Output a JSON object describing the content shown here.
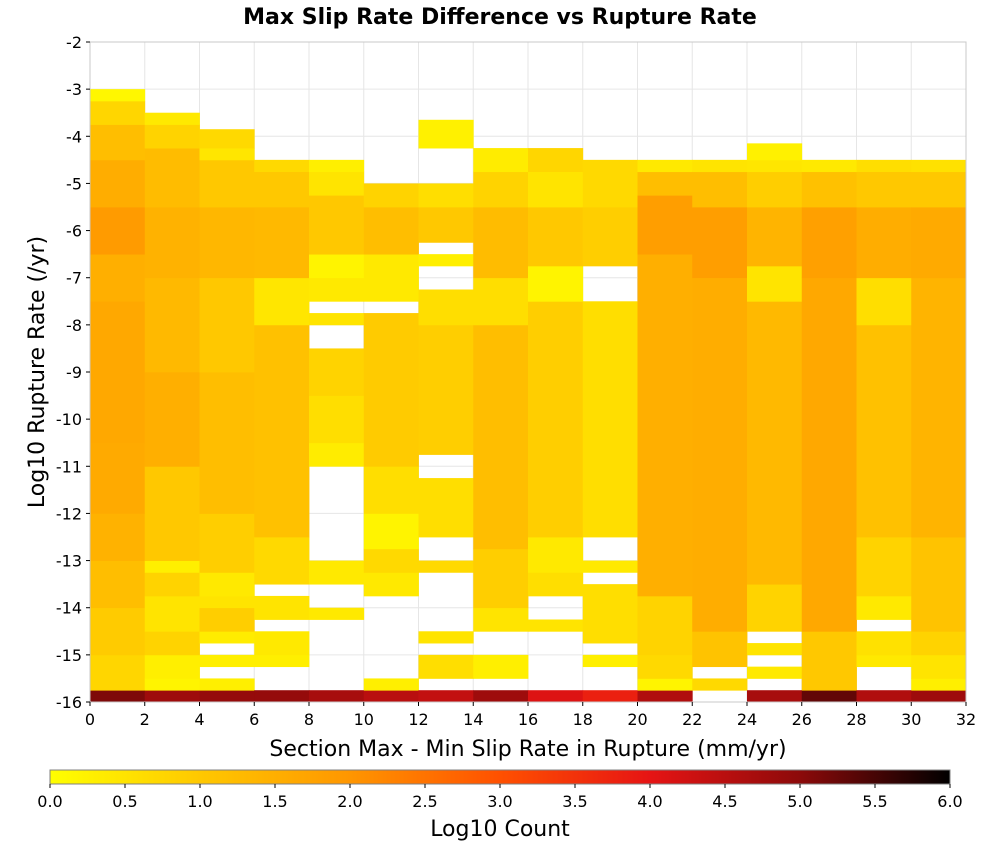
{
  "chart_data": {
    "type": "heatmap",
    "title": "Max Slip Rate Difference vs Rupture Rate",
    "xlabel": "Section Max - Min Slip Rate in Rupture (mm/yr)",
    "ylabel": "Log10 Rupture Rate (/yr)",
    "xlim": [
      0,
      32
    ],
    "ylim": [
      -16,
      -2
    ],
    "x_ticks": [
      "0",
      "2",
      "4",
      "6",
      "8",
      "10",
      "12",
      "14",
      "16",
      "18",
      "20",
      "22",
      "24",
      "26",
      "28",
      "30",
      "32"
    ],
    "y_ticks": [
      "-2",
      "-3",
      "-4",
      "-5",
      "-6",
      "-7",
      "-8",
      "-9",
      "-10",
      "-11",
      "-12",
      "-13",
      "-14",
      "-15",
      "-16"
    ],
    "grid": true,
    "x_bin_width": 2,
    "y_bin_height": 0.25,
    "colorbar": {
      "label": "Log10 Count",
      "range": [
        0,
        6
      ],
      "ticks": [
        "0.0",
        "0.5",
        "1.0",
        "1.5",
        "2.0",
        "2.5",
        "3.0",
        "3.5",
        "4.0",
        "4.5",
        "5.0",
        "5.5",
        "6.0"
      ],
      "colors": [
        "#ffff00",
        "#ffc800",
        "#ff9600",
        "#ff5000",
        "#e61414",
        "#8c0a0a",
        "#000000"
      ]
    },
    "columns": [
      {
        "x": 0,
        "segments": [
          {
            "y0": -16.0,
            "y1": -15.75,
            "v": 5.1
          },
          {
            "y0": -15.75,
            "y1": -15.0,
            "v": 0.75
          },
          {
            "y0": -15.0,
            "y1": -14.0,
            "v": 0.95
          },
          {
            "y0": -14.0,
            "y1": -13.0,
            "v": 1.2
          },
          {
            "y0": -13.0,
            "y1": -12.0,
            "v": 1.45
          },
          {
            "y0": -12.0,
            "y1": -10.5,
            "v": 1.6
          },
          {
            "y0": -10.5,
            "y1": -7.5,
            "v": 1.65
          },
          {
            "y0": -7.5,
            "y1": -6.5,
            "v": 1.5
          },
          {
            "y0": -6.5,
            "y1": -5.5,
            "v": 1.9
          },
          {
            "y0": -5.5,
            "y1": -4.5,
            "v": 1.55
          },
          {
            "y0": -4.5,
            "y1": -3.75,
            "v": 1.2
          },
          {
            "y0": -3.75,
            "y1": -3.25,
            "v": 0.75
          },
          {
            "y0": -3.25,
            "y1": -3.0,
            "v": 0.15
          }
        ]
      },
      {
        "x": 2,
        "segments": [
          {
            "y0": -16.0,
            "y1": -15.75,
            "v": 4.8
          },
          {
            "y0": -15.75,
            "y1": -15.5,
            "v": 0.2
          },
          {
            "y0": -15.5,
            "y1": -15.0,
            "v": 0.3
          },
          {
            "y0": -15.0,
            "y1": -14.5,
            "v": 0.8
          },
          {
            "y0": -14.5,
            "y1": -13.75,
            "v": 0.5
          },
          {
            "y0": -13.75,
            "y1": -13.25,
            "v": 0.8
          },
          {
            "y0": -13.25,
            "y1": -13.0,
            "v": 0.3
          },
          {
            "y0": -13.0,
            "y1": -11.0,
            "v": 1.0
          },
          {
            "y0": -11.0,
            "y1": -9.0,
            "v": 1.5
          },
          {
            "y0": -9.0,
            "y1": -7.0,
            "v": 1.3
          },
          {
            "y0": -7.0,
            "y1": -5.5,
            "v": 1.45
          },
          {
            "y0": -5.5,
            "y1": -4.25,
            "v": 1.25
          },
          {
            "y0": -4.25,
            "y1": -3.75,
            "v": 0.8
          },
          {
            "y0": -3.75,
            "y1": -3.5,
            "v": 0.4
          }
        ]
      },
      {
        "x": 4,
        "segments": [
          {
            "y0": -16.0,
            "y1": -15.75,
            "v": 4.9
          },
          {
            "y0": -15.75,
            "y1": -15.5,
            "v": 0.3
          },
          {
            "y0": -15.25,
            "y1": -15.0,
            "v": 0.3
          },
          {
            "y0": -14.75,
            "y1": -14.5,
            "v": 0.35
          },
          {
            "y0": -14.5,
            "y1": -14.0,
            "v": 0.9
          },
          {
            "y0": -14.0,
            "y1": -13.75,
            "v": 0.5
          },
          {
            "y0": -13.75,
            "y1": -13.25,
            "v": 0.4
          },
          {
            "y0": -13.25,
            "y1": -12.0,
            "v": 0.9
          },
          {
            "y0": -12.0,
            "y1": -9.0,
            "v": 1.2
          },
          {
            "y0": -9.0,
            "y1": -7.0,
            "v": 1.0
          },
          {
            "y0": -7.0,
            "y1": -5.5,
            "v": 1.35
          },
          {
            "y0": -5.5,
            "y1": -4.5,
            "v": 1.0
          },
          {
            "y0": -4.5,
            "y1": -4.25,
            "v": 0.45
          },
          {
            "y0": -4.25,
            "y1": -3.85,
            "v": 0.7
          }
        ]
      },
      {
        "x": 6,
        "segments": [
          {
            "y0": -16.0,
            "y1": -15.75,
            "v": 4.9
          },
          {
            "y0": -15.25,
            "y1": -15.0,
            "v": 0.3
          },
          {
            "y0": -15.0,
            "y1": -14.5,
            "v": 0.4
          },
          {
            "y0": -14.25,
            "y1": -13.75,
            "v": 0.5
          },
          {
            "y0": -13.5,
            "y1": -12.5,
            "v": 0.7
          },
          {
            "y0": -12.5,
            "y1": -8.0,
            "v": 1.15
          },
          {
            "y0": -8.0,
            "y1": -7.0,
            "v": 0.45
          },
          {
            "y0": -7.0,
            "y1": -5.5,
            "v": 1.3
          },
          {
            "y0": -5.5,
            "y1": -4.75,
            "v": 1.0
          },
          {
            "y0": -4.75,
            "y1": -4.5,
            "v": 0.7
          }
        ]
      },
      {
        "x": 8,
        "segments": [
          {
            "y0": -16.0,
            "y1": -15.75,
            "v": 4.7
          },
          {
            "y0": -14.25,
            "y1": -14.0,
            "v": 0.4
          },
          {
            "y0": -13.5,
            "y1": -13.0,
            "v": 0.4
          },
          {
            "y0": -11.0,
            "y1": -10.5,
            "v": 0.35
          },
          {
            "y0": -10.5,
            "y1": -9.5,
            "v": 0.6
          },
          {
            "y0": -9.5,
            "y1": -8.5,
            "v": 0.8
          },
          {
            "y0": -8.0,
            "y1": -7.75,
            "v": 0.5
          },
          {
            "y0": -7.5,
            "y1": -7.0,
            "v": 0.4
          },
          {
            "y0": -7.0,
            "y1": -6.5,
            "v": 0.2
          },
          {
            "y0": -6.5,
            "y1": -5.25,
            "v": 1.0
          },
          {
            "y0": -5.25,
            "y1": -4.75,
            "v": 0.5
          },
          {
            "y0": -4.75,
            "y1": -4.5,
            "v": 0.3
          }
        ]
      },
      {
        "x": 10,
        "segments": [
          {
            "y0": -16.0,
            "y1": -15.75,
            "v": 4.5
          },
          {
            "y0": -15.75,
            "y1": -15.5,
            "v": 0.3
          },
          {
            "y0": -13.75,
            "y1": -13.25,
            "v": 0.4
          },
          {
            "y0": -13.25,
            "y1": -12.75,
            "v": 0.7
          },
          {
            "y0": -12.75,
            "y1": -12.0,
            "v": 0.2
          },
          {
            "y0": -12.0,
            "y1": -11.0,
            "v": 0.6
          },
          {
            "y0": -11.0,
            "y1": -7.75,
            "v": 0.95
          },
          {
            "y0": -7.5,
            "y1": -6.5,
            "v": 0.4
          },
          {
            "y0": -6.5,
            "y1": -5.5,
            "v": 1.2
          },
          {
            "y0": -5.5,
            "y1": -5.0,
            "v": 0.8
          }
        ]
      },
      {
        "x": 12,
        "segments": [
          {
            "y0": -16.0,
            "y1": -15.75,
            "v": 4.4
          },
          {
            "y0": -15.5,
            "y1": -15.0,
            "v": 0.6
          },
          {
            "y0": -14.75,
            "y1": -14.5,
            "v": 0.5
          },
          {
            "y0": -13.25,
            "y1": -13.0,
            "v": 0.7
          },
          {
            "y0": -12.5,
            "y1": -11.25,
            "v": 0.6
          },
          {
            "y0": -10.75,
            "y1": -8.0,
            "v": 0.9
          },
          {
            "y0": -8.0,
            "y1": -7.25,
            "v": 0.6
          },
          {
            "y0": -6.75,
            "y1": -6.5,
            "v": 0.3
          },
          {
            "y0": -6.25,
            "y1": -5.5,
            "v": 1.0
          },
          {
            "y0": -5.5,
            "y1": -5.0,
            "v": 0.6
          },
          {
            "y0": -4.25,
            "y1": -3.65,
            "v": 0.25
          }
        ]
      },
      {
        "x": 14,
        "segments": [
          {
            "y0": -16.0,
            "y1": -15.75,
            "v": 4.8
          },
          {
            "y0": -15.5,
            "y1": -15.0,
            "v": 0.3
          },
          {
            "y0": -14.5,
            "y1": -14.0,
            "v": 0.5
          },
          {
            "y0": -14.0,
            "y1": -12.75,
            "v": 0.9
          },
          {
            "y0": -12.75,
            "y1": -8.0,
            "v": 1.2
          },
          {
            "y0": -8.0,
            "y1": -7.0,
            "v": 0.6
          },
          {
            "y0": -7.0,
            "y1": -5.5,
            "v": 1.25
          },
          {
            "y0": -5.5,
            "y1": -4.75,
            "v": 0.8
          },
          {
            "y0": -4.75,
            "y1": -4.25,
            "v": 0.35
          }
        ]
      },
      {
        "x": 16,
        "segments": [
          {
            "y0": -16.0,
            "y1": -15.75,
            "v": 4.1
          },
          {
            "y0": -14.5,
            "y1": -14.25,
            "v": 0.5
          },
          {
            "y0": -13.75,
            "y1": -13.25,
            "v": 0.6
          },
          {
            "y0": -13.25,
            "y1": -12.5,
            "v": 0.4
          },
          {
            "y0": -12.5,
            "y1": -7.5,
            "v": 0.9
          },
          {
            "y0": -7.5,
            "y1": -6.75,
            "v": 0.2
          },
          {
            "y0": -6.75,
            "y1": -5.5,
            "v": 1.0
          },
          {
            "y0": -5.5,
            "y1": -4.75,
            "v": 0.5
          },
          {
            "y0": -4.75,
            "y1": -4.25,
            "v": 0.75
          }
        ]
      },
      {
        "x": 18,
        "segments": [
          {
            "y0": -16.0,
            "y1": -15.75,
            "v": 3.8
          },
          {
            "y0": -15.25,
            "y1": -15.0,
            "v": 0.3
          },
          {
            "y0": -14.75,
            "y1": -13.5,
            "v": 0.6
          },
          {
            "y0": -13.25,
            "y1": -13.0,
            "v": 0.4
          },
          {
            "y0": -12.5,
            "y1": -7.5,
            "v": 0.6
          },
          {
            "y0": -6.75,
            "y1": -5.5,
            "v": 0.9
          },
          {
            "y0": -5.5,
            "y1": -4.5,
            "v": 0.7
          }
        ]
      },
      {
        "x": 20,
        "segments": [
          {
            "y0": -16.0,
            "y1": -15.75,
            "v": 4.6
          },
          {
            "y0": -15.75,
            "y1": -15.5,
            "v": 0.2
          },
          {
            "y0": -15.5,
            "y1": -15.0,
            "v": 0.7
          },
          {
            "y0": -15.0,
            "y1": -13.75,
            "v": 0.8
          },
          {
            "y0": -13.75,
            "y1": -6.5,
            "v": 1.5
          },
          {
            "y0": -6.5,
            "y1": -5.25,
            "v": 1.85
          },
          {
            "y0": -5.25,
            "y1": -4.75,
            "v": 1.2
          },
          {
            "y0": -4.75,
            "y1": -4.5,
            "v": 0.4
          }
        ]
      },
      {
        "x": 22,
        "segments": [
          {
            "y0": -15.75,
            "y1": -15.5,
            "v": 0.7
          },
          {
            "y0": -15.25,
            "y1": -14.5,
            "v": 1.1
          },
          {
            "y0": -14.5,
            "y1": -7.0,
            "v": 1.55
          },
          {
            "y0": -7.0,
            "y1": -5.5,
            "v": 1.85
          },
          {
            "y0": -5.5,
            "y1": -4.75,
            "v": 1.2
          },
          {
            "y0": -4.75,
            "y1": -4.5,
            "v": 0.5
          }
        ]
      },
      {
        "x": 24,
        "segments": [
          {
            "y0": -16.0,
            "y1": -15.75,
            "v": 4.7
          },
          {
            "y0": -15.5,
            "y1": -15.25,
            "v": 0.4
          },
          {
            "y0": -15.0,
            "y1": -14.75,
            "v": 0.5
          },
          {
            "y0": -14.5,
            "y1": -13.5,
            "v": 0.8
          },
          {
            "y0": -13.5,
            "y1": -7.5,
            "v": 1.3
          },
          {
            "y0": -7.5,
            "y1": -6.75,
            "v": 0.5
          },
          {
            "y0": -6.75,
            "y1": -5.5,
            "v": 1.4
          },
          {
            "y0": -5.5,
            "y1": -4.75,
            "v": 0.9
          },
          {
            "y0": -4.75,
            "y1": -4.5,
            "v": 0.45
          },
          {
            "y0": -4.5,
            "y1": -4.15,
            "v": 0.25
          }
        ]
      },
      {
        "x": 26,
        "segments": [
          {
            "y0": -16.0,
            "y1": -15.75,
            "v": 5.3
          },
          {
            "y0": -15.75,
            "y1": -14.5,
            "v": 1.0
          },
          {
            "y0": -14.5,
            "y1": -7.0,
            "v": 1.65
          },
          {
            "y0": -7.0,
            "y1": -5.5,
            "v": 1.8
          },
          {
            "y0": -5.5,
            "y1": -4.75,
            "v": 1.15
          },
          {
            "y0": -4.75,
            "y1": -4.5,
            "v": 0.4
          }
        ]
      },
      {
        "x": 28,
        "segments": [
          {
            "y0": -16.0,
            "y1": -15.75,
            "v": 4.6
          },
          {
            "y0": -15.25,
            "y1": -15.0,
            "v": 0.4
          },
          {
            "y0": -15.0,
            "y1": -14.5,
            "v": 0.55
          },
          {
            "y0": -14.25,
            "y1": -13.75,
            "v": 0.4
          },
          {
            "y0": -13.75,
            "y1": -12.5,
            "v": 0.8
          },
          {
            "y0": -12.5,
            "y1": -8.0,
            "v": 1.15
          },
          {
            "y0": -8.0,
            "y1": -7.0,
            "v": 0.6
          },
          {
            "y0": -7.0,
            "y1": -5.5,
            "v": 1.55
          },
          {
            "y0": -5.5,
            "y1": -4.75,
            "v": 1.0
          },
          {
            "y0": -4.75,
            "y1": -4.5,
            "v": 0.6
          }
        ]
      },
      {
        "x": 30,
        "segments": [
          {
            "y0": -16.0,
            "y1": -15.75,
            "v": 4.8
          },
          {
            "y0": -15.75,
            "y1": -15.5,
            "v": 0.3
          },
          {
            "y0": -15.5,
            "y1": -15.0,
            "v": 0.5
          },
          {
            "y0": -15.0,
            "y1": -14.5,
            "v": 0.8
          },
          {
            "y0": -14.5,
            "y1": -12.5,
            "v": 1.1
          },
          {
            "y0": -12.5,
            "y1": -7.0,
            "v": 1.4
          },
          {
            "y0": -7.0,
            "y1": -5.5,
            "v": 1.6
          },
          {
            "y0": -5.5,
            "y1": -4.75,
            "v": 1.0
          },
          {
            "y0": -4.75,
            "y1": -4.5,
            "v": 0.55
          }
        ]
      }
    ]
  }
}
